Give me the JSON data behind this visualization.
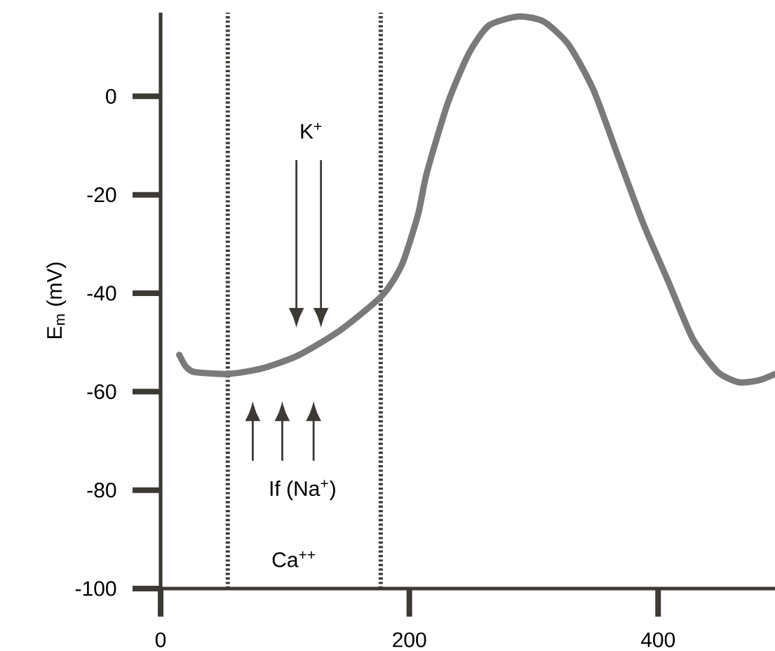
{
  "chart_data": {
    "type": "line",
    "ylabel": "E$_{m}$ (mV)",
    "x": [
      15,
      20,
      27,
      54,
      81,
      110,
      144,
      178,
      194,
      207,
      214,
      231,
      248,
      264,
      288,
      308,
      328,
      348,
      368,
      388,
      408,
      428,
      448,
      465,
      481,
      494
    ],
    "values": [
      -52.5,
      -54.8,
      -56,
      -56.4,
      -55.3,
      -52.7,
      -47.6,
      -40.5,
      -34.2,
      -24,
      -15.6,
      -1.3,
      8.8,
      14.4,
      16.2,
      15.2,
      10.5,
      1.3,
      -12.3,
      -25.8,
      -37.5,
      -49.3,
      -56,
      -58.1,
      -57.7,
      -56.4
    ],
    "color": "#7a7a7a",
    "marker": "none",
    "line_style": "solid",
    "xlim": [
      0,
      494
    ],
    "ylim": [
      -100,
      17
    ],
    "xticks": [
      0,
      200,
      400
    ],
    "yticks": [
      -100,
      -80,
      -60,
      -40,
      -20,
      0
    ],
    "ref_lines": [
      {
        "axis": "x",
        "value": 54,
        "color": "#3d3935",
        "line_style": "dotted"
      },
      {
        "axis": "x",
        "value": 177,
        "color": "#3d3935",
        "line_style": "dotted"
      }
    ],
    "annotations": [
      "K$^{+}$",
      "If (Na$^{+}$)",
      "Ca$^{++}$"
    ]
  }
}
